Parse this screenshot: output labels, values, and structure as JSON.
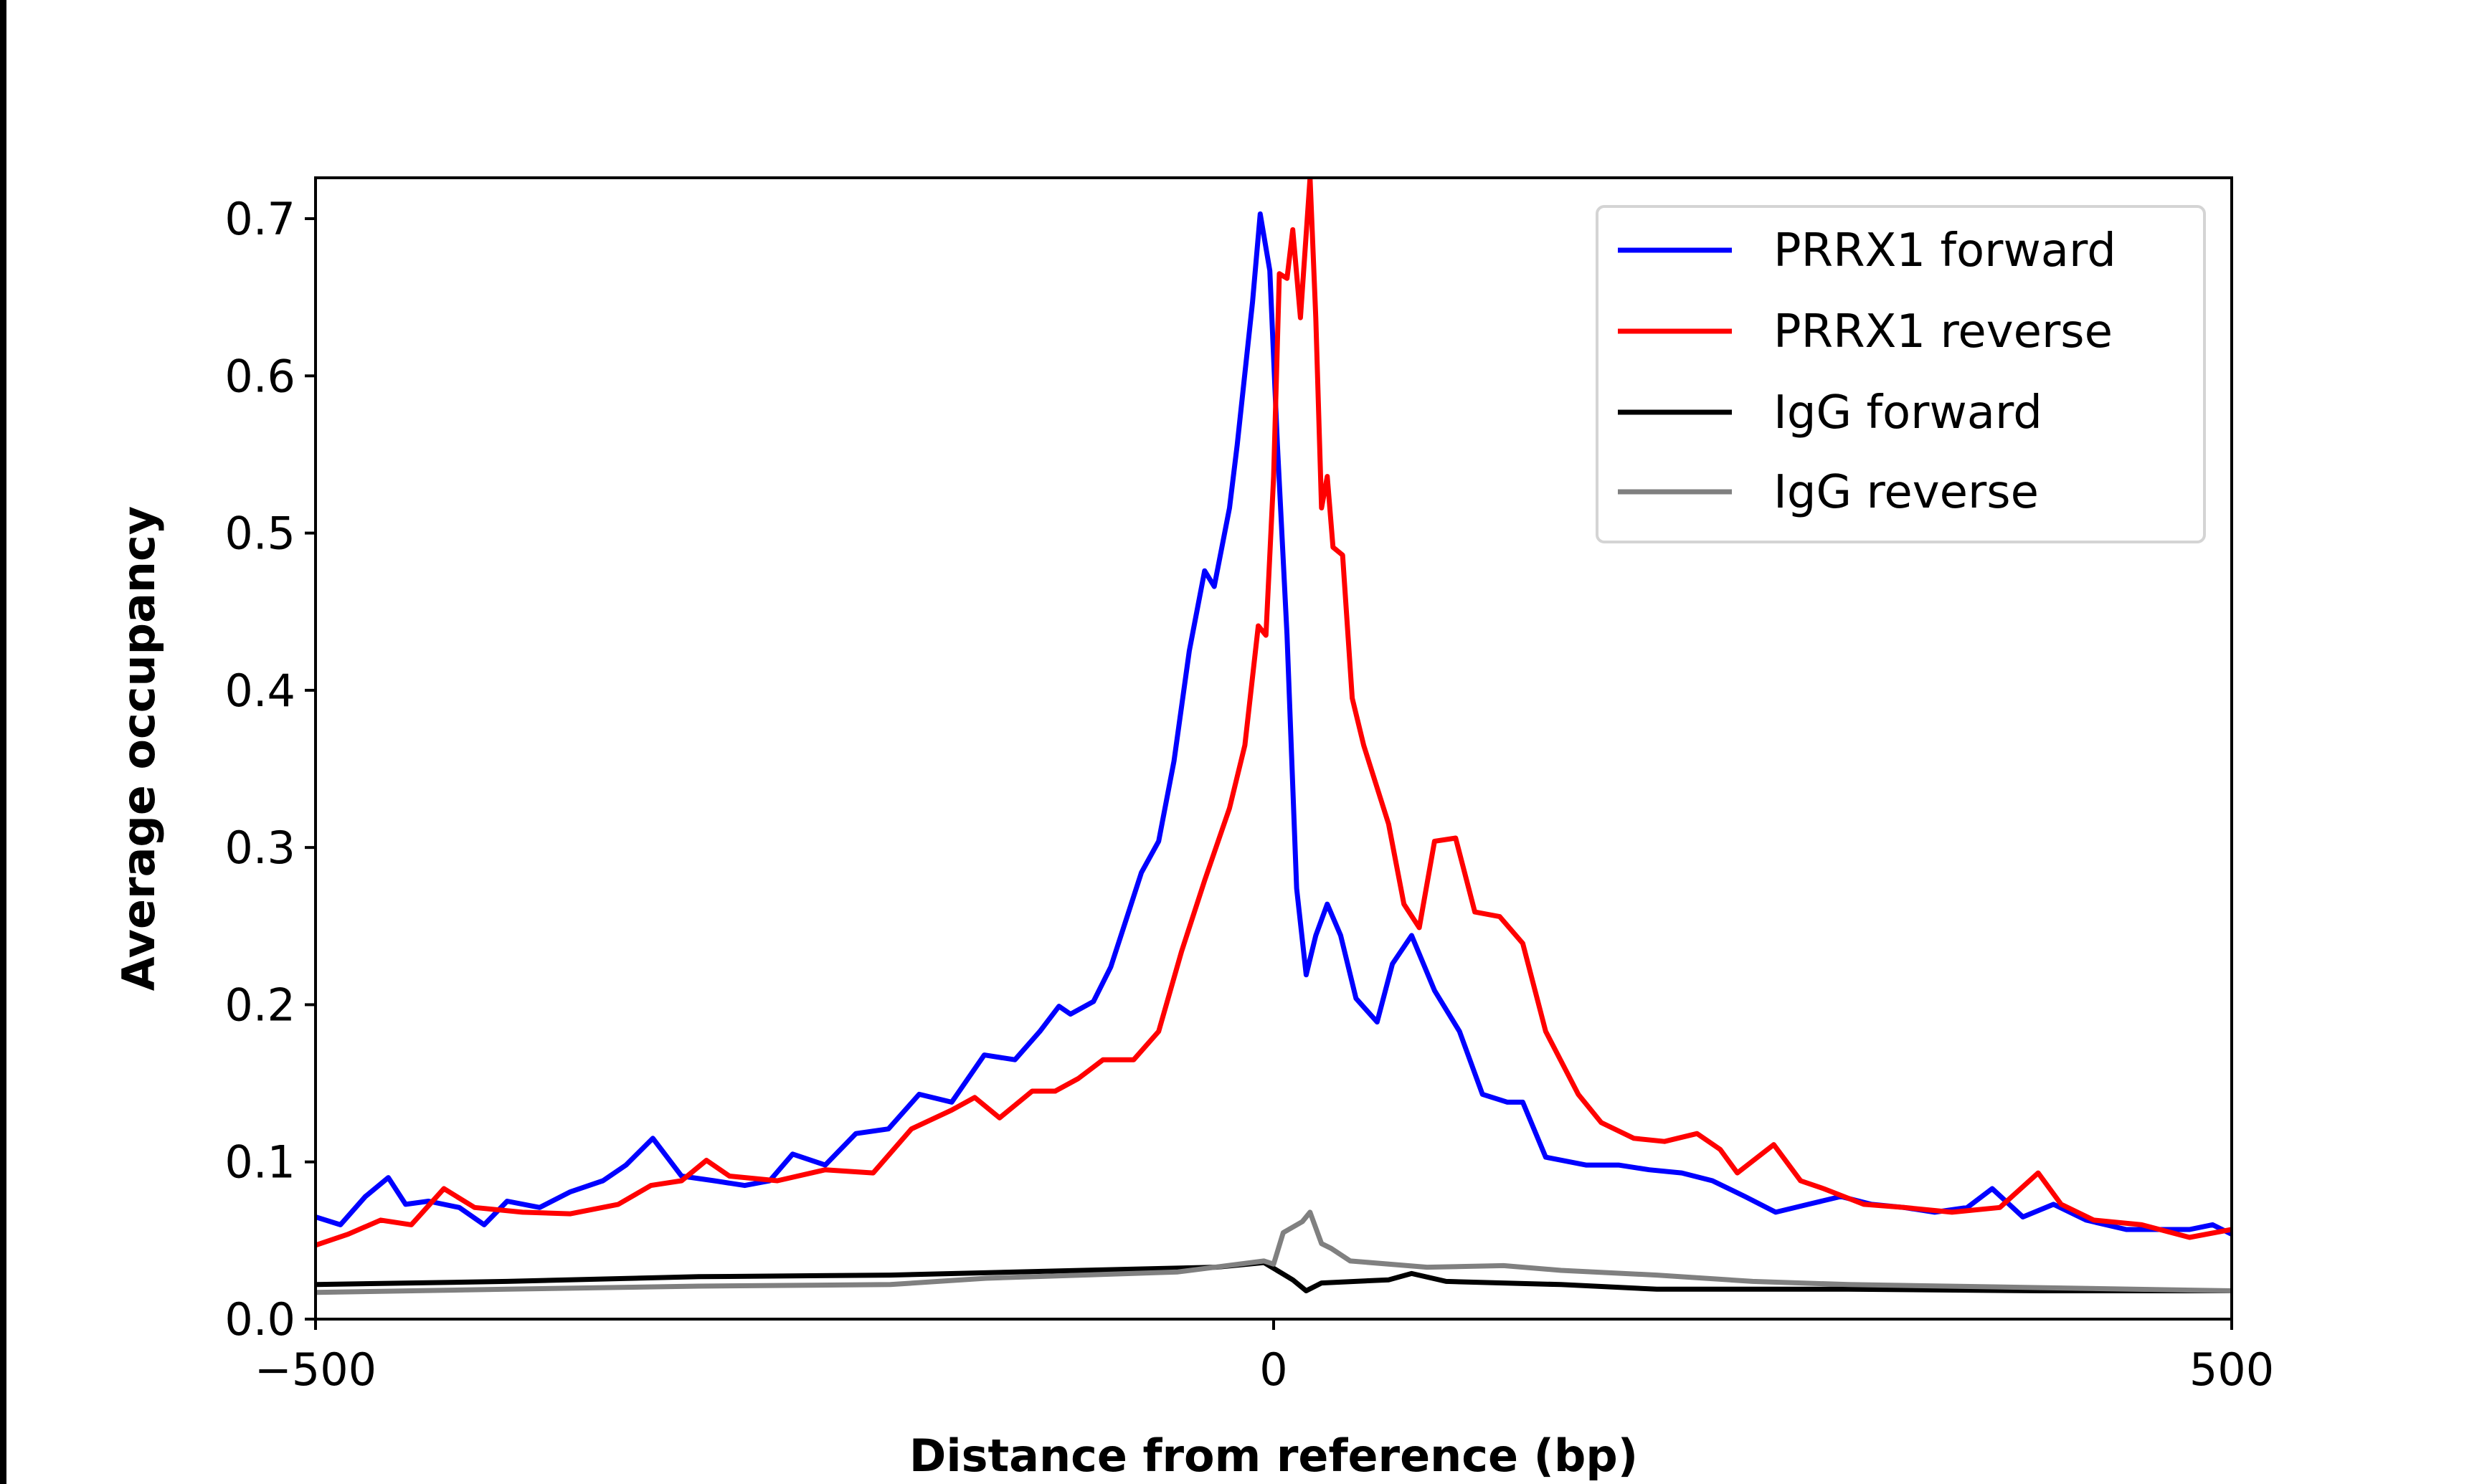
{
  "chart_data": {
    "type": "line",
    "title": "",
    "xlabel": "Distance from reference (bp)",
    "ylabel": "Average occupancy",
    "xlim": [
      -500,
      500
    ],
    "ylim": [
      0,
      0.726
    ],
    "xticks": [
      -500,
      0,
      500
    ],
    "xtick_labels": [
      "−500",
      "0",
      "500"
    ],
    "yticks": [
      0,
      0.1,
      0.2,
      0.3,
      0.4,
      0.5,
      0.6,
      0.7
    ],
    "ytick_labels": [
      "0.0",
      "0.1",
      "0.2",
      "0.3",
      "0.4",
      "0.5",
      "0.6",
      "0.7"
    ],
    "grid": false,
    "legend_position": "top-right",
    "series": [
      {
        "name": "PRRX1 forward",
        "color": "#0000ff",
        "x": [
          -500,
          -487,
          -474,
          -462,
          -453,
          -441,
          -425,
          -412,
          -400,
          -383,
          -367,
          -350,
          -338,
          -324,
          -309,
          -292,
          -276,
          -263,
          -251,
          -234,
          -218,
          -201,
          -185,
          -168,
          -151,
          -135,
          -122,
          -112,
          -106,
          -94,
          -85,
          -77,
          -69,
          -60,
          -52,
          -44,
          -36,
          -31,
          -23,
          -19,
          -11,
          -7,
          -2,
          2,
          7,
          12,
          17,
          22,
          28,
          35,
          43,
          54,
          62,
          72,
          84,
          97,
          109,
          122,
          130,
          142,
          163,
          180,
          196,
          213,
          229,
          246,
          262,
          279,
          296,
          312,
          329,
          345,
          362,
          375,
          391,
          407,
          424,
          445,
          461,
          478,
          490,
          500
        ],
        "y": [
          0.065,
          0.06,
          0.078,
          0.09,
          0.073,
          0.075,
          0.071,
          0.06,
          0.075,
          0.071,
          0.081,
          0.088,
          0.098,
          0.115,
          0.091,
          0.088,
          0.085,
          0.088,
          0.105,
          0.098,
          0.118,
          0.121,
          0.143,
          0.138,
          0.168,
          0.165,
          0.183,
          0.199,
          0.194,
          0.202,
          0.224,
          0.254,
          0.284,
          0.304,
          0.355,
          0.425,
          0.476,
          0.466,
          0.516,
          0.556,
          0.647,
          0.703,
          0.667,
          0.556,
          0.435,
          0.274,
          0.219,
          0.244,
          0.264,
          0.244,
          0.204,
          0.189,
          0.226,
          0.244,
          0.209,
          0.183,
          0.143,
          0.138,
          0.138,
          0.103,
          0.098,
          0.098,
          0.095,
          0.093,
          0.088,
          0.078,
          0.068,
          0.073,
          0.078,
          0.073,
          0.071,
          0.068,
          0.071,
          0.083,
          0.065,
          0.073,
          0.063,
          0.057,
          0.057,
          0.057,
          0.06,
          0.054
        ]
      },
      {
        "name": "PRRX1 reverse",
        "color": "#ff0000",
        "x": [
          -500,
          -483,
          -466,
          -450,
          -433,
          -417,
          -392,
          -367,
          -342,
          -325,
          -309,
          -296,
          -284,
          -259,
          -234,
          -209,
          -189,
          -168,
          -156,
          -143,
          -126,
          -114,
          -102,
          -89,
          -73,
          -60,
          -48,
          -36,
          -23,
          -15,
          -8,
          -4,
          0,
          3,
          7,
          10,
          14,
          19,
          22,
          25,
          28,
          31,
          36,
          41,
          47,
          60,
          68,
          76,
          84,
          95,
          105,
          118,
          130,
          142,
          159,
          171,
          188,
          204,
          221,
          233,
          242,
          261,
          275,
          287,
          308,
          329,
          354,
          379,
          399,
          411,
          428,
          453,
          478,
          500
        ],
        "y": [
          0.047,
          0.054,
          0.063,
          0.06,
          0.083,
          0.071,
          0.068,
          0.067,
          0.073,
          0.085,
          0.088,
          0.101,
          0.091,
          0.088,
          0.095,
          0.093,
          0.121,
          0.133,
          0.141,
          0.128,
          0.145,
          0.145,
          0.153,
          0.165,
          0.165,
          0.183,
          0.234,
          0.279,
          0.325,
          0.365,
          0.441,
          0.435,
          0.536,
          0.665,
          0.662,
          0.693,
          0.637,
          0.726,
          0.637,
          0.516,
          0.536,
          0.491,
          0.486,
          0.395,
          0.365,
          0.315,
          0.264,
          0.249,
          0.304,
          0.306,
          0.259,
          0.256,
          0.239,
          0.183,
          0.143,
          0.125,
          0.115,
          0.113,
          0.118,
          0.108,
          0.093,
          0.111,
          0.088,
          0.083,
          0.073,
          0.071,
          0.068,
          0.071,
          0.093,
          0.073,
          0.063,
          0.06,
          0.052,
          0.057
        ]
      },
      {
        "name": "IgG forward",
        "color": "#000000",
        "x": [
          -500,
          -400,
          -300,
          -200,
          -100,
          -30,
          -5,
          10,
          17,
          25,
          60,
          72,
          90,
          150,
          200,
          300,
          400,
          500
        ],
        "y": [
          0.022,
          0.024,
          0.027,
          0.028,
          0.031,
          0.033,
          0.036,
          0.025,
          0.018,
          0.023,
          0.025,
          0.029,
          0.024,
          0.022,
          0.019,
          0.019,
          0.018,
          0.018
        ]
      },
      {
        "name": "IgG reverse",
        "color": "#808080",
        "x": [
          -500,
          -400,
          -300,
          -200,
          -150,
          -100,
          -50,
          -5,
          0,
          5,
          15,
          19,
          25,
          30,
          40,
          80,
          120,
          150,
          200,
          250,
          300,
          400,
          500
        ],
        "y": [
          0.017,
          0.019,
          0.021,
          0.022,
          0.026,
          0.028,
          0.03,
          0.037,
          0.035,
          0.055,
          0.062,
          0.068,
          0.048,
          0.045,
          0.037,
          0.033,
          0.034,
          0.031,
          0.028,
          0.024,
          0.022,
          0.02,
          0.018
        ]
      }
    ]
  }
}
